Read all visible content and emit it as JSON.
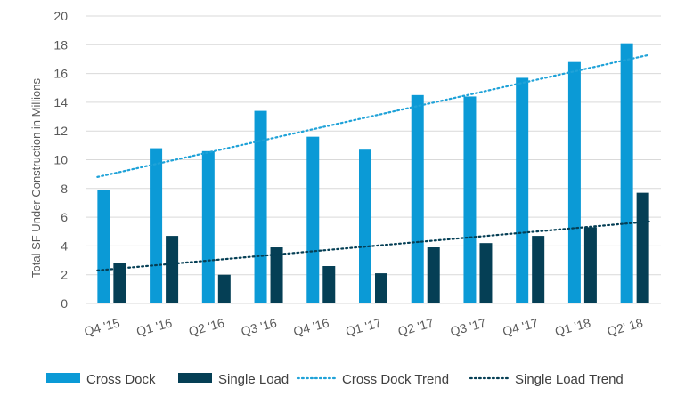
{
  "chart_data": {
    "type": "bar",
    "title": "",
    "xlabel": "",
    "ylabel": "Total SF Under Construction in Millions",
    "ylim": [
      0,
      20
    ],
    "y_ticks": [
      0,
      2,
      4,
      6,
      8,
      10,
      12,
      14,
      16,
      18,
      20
    ],
    "grid": "horizontal",
    "legend_position": "bottom",
    "categories": [
      "Q4 '15",
      "Q1 '16",
      "Q2 '16",
      "Q3 '16",
      "Q4 '16",
      "Q1 '17",
      "Q2 '17",
      "Q3 '17",
      "Q4 '17",
      "Q1 '18",
      "Q2' 18"
    ],
    "series": [
      {
        "name": "Cross Dock",
        "kind": "bar",
        "color": "#0b9ad6",
        "values": [
          7.9,
          10.8,
          10.6,
          13.4,
          11.6,
          10.7,
          14.5,
          14.4,
          15.7,
          16.8,
          18.1
        ]
      },
      {
        "name": "Single Load",
        "kind": "bar",
        "color": "#053f55",
        "values": [
          2.8,
          4.7,
          2.0,
          3.9,
          2.6,
          2.1,
          3.9,
          4.2,
          4.7,
          5.3,
          7.7
        ]
      },
      {
        "name": "Cross Dock Trend",
        "kind": "trendline",
        "color": "#1fa2d8",
        "start": 8.8,
        "end": 17.3
      },
      {
        "name": "Single Load Trend",
        "kind": "trendline",
        "color": "#053f55",
        "start": 2.3,
        "end": 5.7
      }
    ]
  }
}
